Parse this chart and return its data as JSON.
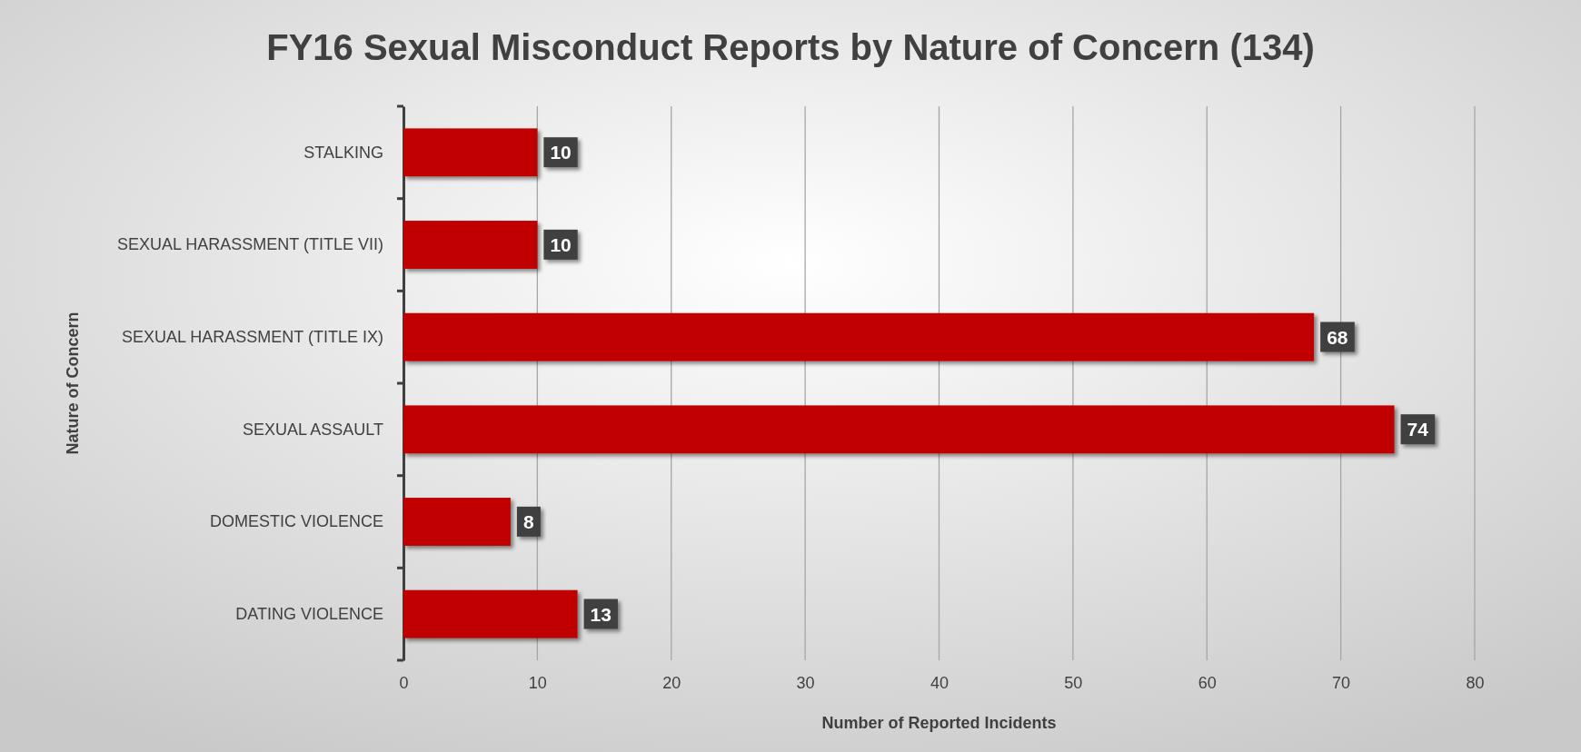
{
  "chart_data": {
    "type": "bar",
    "orientation": "horizontal",
    "title": "FY16 Sexual Misconduct Reports by Nature of Concern (134)",
    "xlabel": "Number of Reported Incidents",
    "ylabel": "Nature of Concern",
    "categories": [
      "STALKING",
      "SEXUAL HARASSMENT (TITLE VII)",
      "SEXUAL HARASSMENT (TITLE IX)",
      "SEXUAL ASSAULT",
      "DOMESTIC VIOLENCE",
      "DATING VIOLENCE"
    ],
    "values": [
      10,
      10,
      68,
      74,
      8,
      13
    ],
    "color": "#c00000",
    "xlim": [
      0,
      80
    ],
    "xticks": [
      0,
      10,
      20,
      30,
      40,
      50,
      60,
      70,
      80
    ],
    "grid": "x",
    "data_labels": true
  }
}
